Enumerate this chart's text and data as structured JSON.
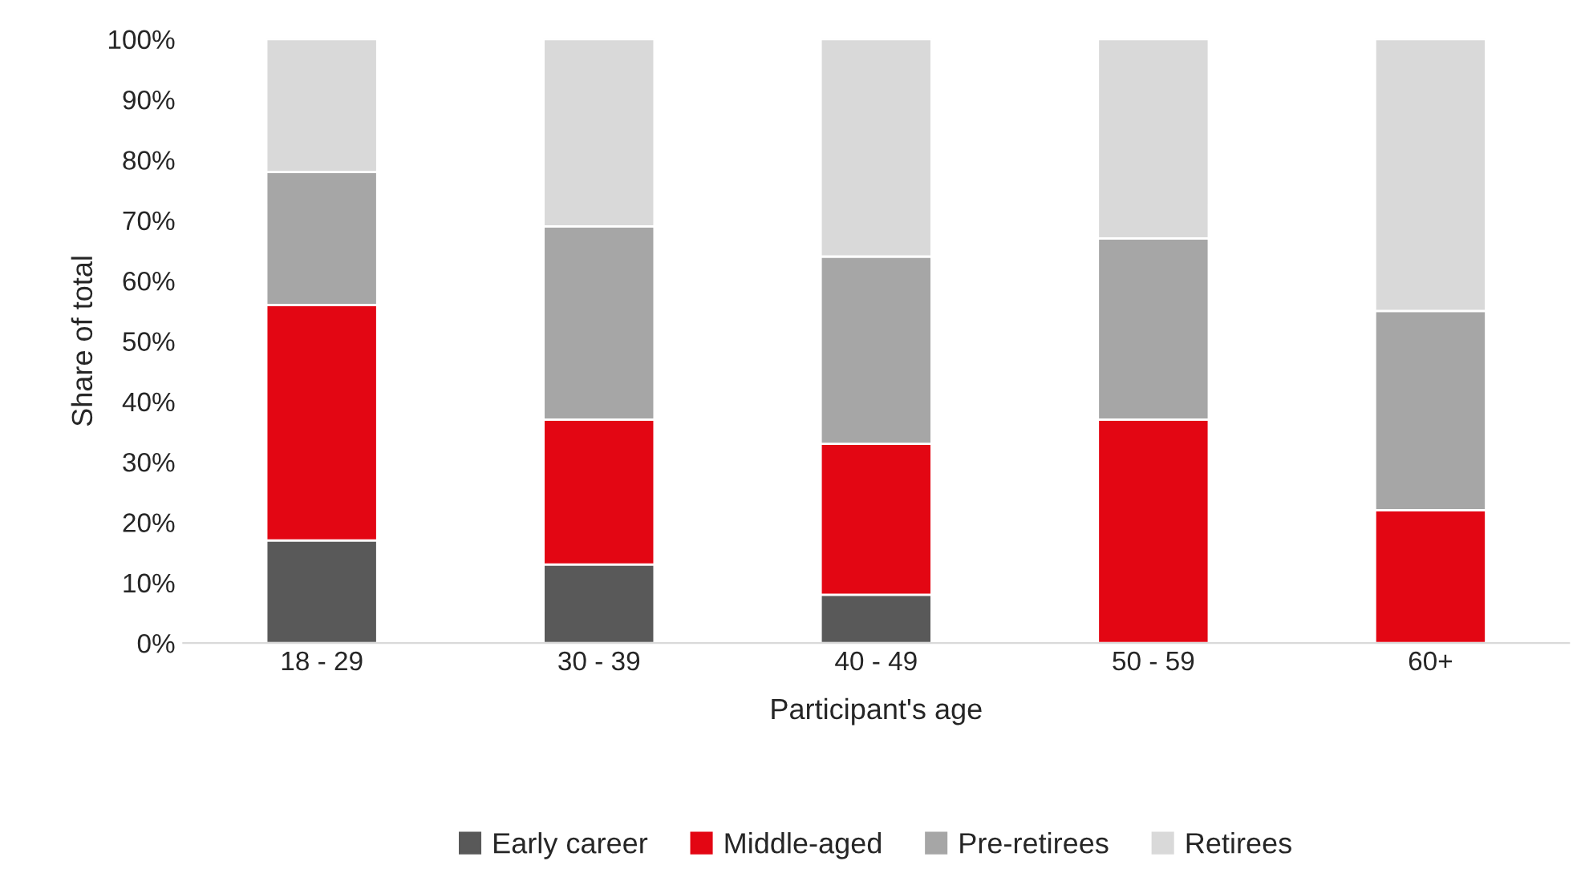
{
  "chart_data": {
    "type": "bar",
    "stacked": true,
    "xlabel": "Participant's age",
    "ylabel": "Share of total",
    "categories": [
      "18 - 29",
      "30 - 39",
      "40 - 49",
      "50 - 59",
      "60+"
    ],
    "series": [
      {
        "name": "Early career",
        "color": "#595959",
        "values": [
          17,
          13,
          8,
          0,
          0
        ]
      },
      {
        "name": "Middle-aged",
        "color": "#e30613",
        "values": [
          39,
          24,
          25,
          37,
          22
        ]
      },
      {
        "name": "Pre-retirees",
        "color": "#a6a6a6",
        "values": [
          22,
          32,
          31,
          30,
          33
        ]
      },
      {
        "name": "Retirees",
        "color": "#d9d9d9",
        "values": [
          22,
          31,
          36,
          33,
          45
        ]
      }
    ],
    "ylim": [
      0,
      100
    ],
    "yticks": [
      {
        "value": 0,
        "label": "0%"
      },
      {
        "value": 10,
        "label": "10%"
      },
      {
        "value": 20,
        "label": "20%"
      },
      {
        "value": 30,
        "label": "30%"
      },
      {
        "value": 40,
        "label": "40%"
      },
      {
        "value": 50,
        "label": "50%"
      },
      {
        "value": 60,
        "label": "60%"
      },
      {
        "value": 70,
        "label": "70%"
      },
      {
        "value": 80,
        "label": "80%"
      },
      {
        "value": 90,
        "label": "90%"
      },
      {
        "value": 100,
        "label": "100%"
      }
    ],
    "legend": "bottom",
    "grid": false
  }
}
